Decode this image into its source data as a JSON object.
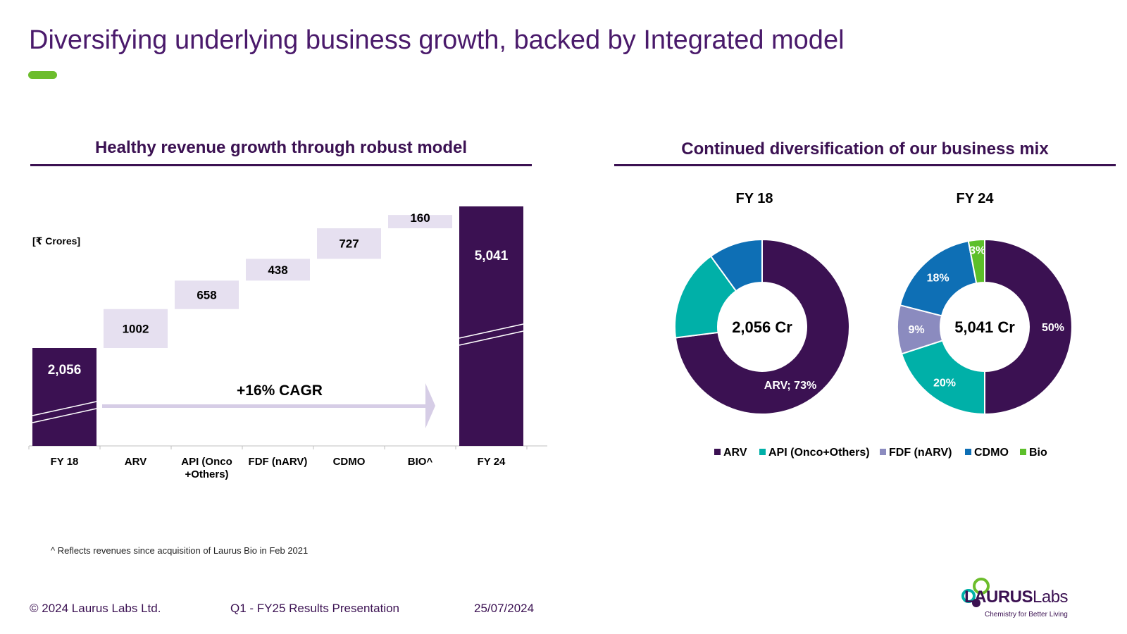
{
  "page": {
    "title": "Diversifying underlying business growth, backed by Integrated model",
    "footnote": "^ Reflects revenues since acquisition of Laurus Bio in Feb 2021",
    "footer": {
      "copyright": "© 2024  Laurus Labs Ltd.",
      "presentation": "Q1 - FY25  Results Presentation",
      "date": "25/07/2024"
    },
    "logo": {
      "brand_bold": "LAURUS",
      "brand_light": "Labs",
      "tagline": "Chemistry for Better Living"
    }
  },
  "colors": {
    "title": "#4a1a6b",
    "heading": "#3b1152",
    "accent": "#6cbd2c",
    "arv": "#3b1152",
    "api": "#00b0a8",
    "fdf": "#8b8bbf",
    "cdmo": "#0e6fb5",
    "bio": "#5cbf2a",
    "waterfall_step": "#e6e0f0",
    "cagr_arrow": "#d6cde6"
  },
  "chart_data": [
    {
      "type": "bar",
      "subtype": "waterfall",
      "title": "Healthy revenue growth through robust model",
      "unit_label": "[₹ Crores]",
      "categories": [
        "FY 18",
        "ARV",
        "API (Onco +Others)",
        "FDF (nARV)",
        "CDMO",
        "BIO^",
        "FY 24"
      ],
      "category_lines": [
        [
          "FY 18"
        ],
        [
          "ARV"
        ],
        [
          "API (Onco",
          "+Others)"
        ],
        [
          "FDF (nARV)"
        ],
        [
          "CDMO"
        ],
        [
          "BIO^"
        ],
        [
          "FY 24"
        ]
      ],
      "values": [
        2056,
        1002,
        658,
        438,
        727,
        160,
        5041
      ],
      "labels": [
        "2,056",
        "1002",
        "658",
        "438",
        "727",
        "160",
        "5,041"
      ],
      "kinds": [
        "total",
        "step",
        "step",
        "step",
        "step",
        "step",
        "total"
      ],
      "annotation": "+16% CAGR",
      "axis_break": true
    },
    {
      "type": "pie",
      "subtype": "donut",
      "title": "FY 18",
      "center_label": "2,056 Cr",
      "slices": [
        {
          "name": "ARV",
          "value": 73,
          "label": "ARV; 73%"
        },
        {
          "name": "API (Onco+Others)",
          "value": 17,
          "label": ""
        },
        {
          "name": "CDMO",
          "value": 10,
          "label": ""
        }
      ]
    },
    {
      "type": "pie",
      "subtype": "donut",
      "title": "FY 24",
      "center_label": "5,041 Cr",
      "slices": [
        {
          "name": "ARV",
          "value": 50,
          "label": "50%"
        },
        {
          "name": "API (Onco+Others)",
          "value": 20,
          "label": "20%"
        },
        {
          "name": "FDF (nARV)",
          "value": 9,
          "label": "9%"
        },
        {
          "name": "CDMO",
          "value": 18,
          "label": "18%"
        },
        {
          "name": "Bio",
          "value": 3,
          "label": "3%"
        }
      ]
    }
  ],
  "mix_section": {
    "title": "Continued diversification of our business mix",
    "legend": [
      "ARV",
      "API (Onco+Others)",
      "FDF (nARV)",
      "CDMO",
      "Bio"
    ]
  }
}
